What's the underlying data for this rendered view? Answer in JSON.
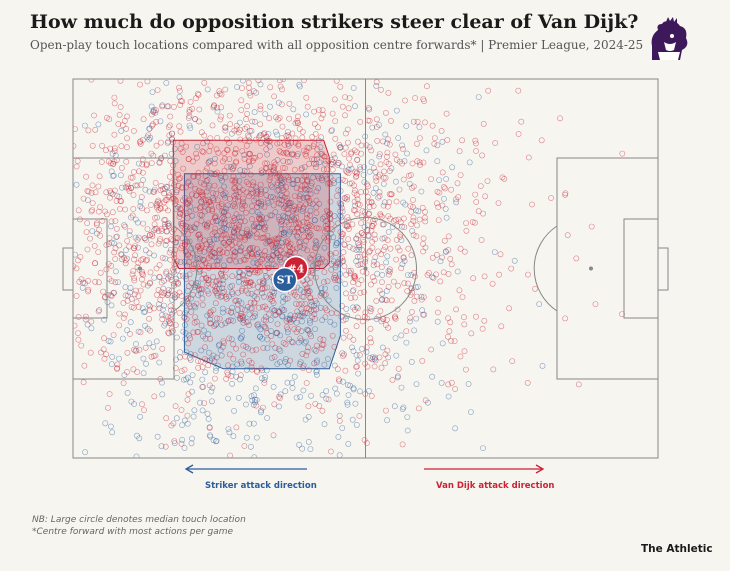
{
  "header": {
    "title": "How much do opposition strikers steer clear of Van Dijk?",
    "subtitle": "Open-play touch locations compared with all opposition centre forwards* | Premier League, 2024-25"
  },
  "colors": {
    "van_dijk": "#cc2233",
    "striker": "#2b5d9b",
    "pitch_line": "#888888",
    "background": "#f6f5f0",
    "logo": "#3d195b"
  },
  "chart_data": {
    "type": "scatter",
    "title": "How much do opposition strikers steer clear of Van Dijk?",
    "pitch": {
      "length_m": 105,
      "width_m": 68
    },
    "series": [
      {
        "name": "Van Dijk",
        "median_label": "#4",
        "median": [
          40,
          34
        ],
        "zone_polygon": [
          [
            18,
            11
          ],
          [
            45,
            11
          ],
          [
            46,
            14
          ],
          [
            46,
            33
          ],
          [
            45,
            34
          ],
          [
            19,
            34
          ],
          [
            18,
            32
          ]
        ],
        "touch_center": [
          32,
          27
        ],
        "touch_spread": [
          20,
          15
        ],
        "touch_count": 2200
      },
      {
        "name": "Opposition centre forwards",
        "median_label": "ST",
        "median": [
          38,
          36
        ],
        "zone_polygon": [
          [
            20,
            17
          ],
          [
            48,
            17
          ],
          [
            48,
            46
          ],
          [
            46,
            52
          ],
          [
            27,
            52
          ],
          [
            20,
            49
          ]
        ],
        "touch_center": [
          34,
          34
        ],
        "touch_spread": [
          16,
          19
        ],
        "touch_count": 1000
      }
    ],
    "attack_direction": {
      "striker": "Striker attack direction",
      "van_dijk": "Van Dijk attack direction"
    }
  },
  "notes": {
    "line1": "NB: Large circle denotes median touch location",
    "line2": "*Centre forward with most actions per game"
  },
  "brand": "The Athletic"
}
